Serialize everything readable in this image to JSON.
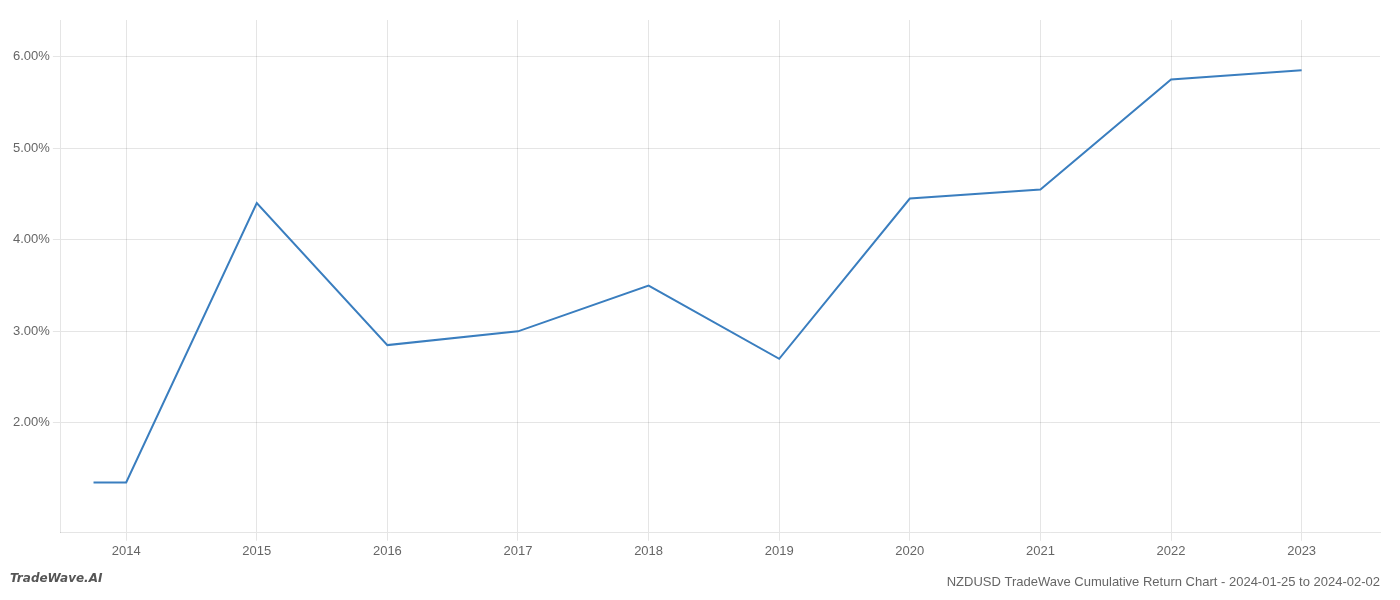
{
  "chart_data": {
    "type": "line",
    "title": "NZDUSD TradeWave Cumulative Return Chart - 2024-01-25 to 2024-02-02",
    "annotations": [
      "TradeWave.AI"
    ],
    "x": [
      2013.75,
      2014,
      2015,
      2016,
      2017,
      2018,
      2019,
      2020,
      2021,
      2022,
      2023
    ],
    "values": [
      0.0135,
      0.0135,
      0.044,
      0.0285,
      0.03,
      0.035,
      0.027,
      0.0445,
      0.0455,
      0.0575,
      0.0585
    ],
    "color": "#3a7ebf",
    "xlim": [
      2013.5,
      2023.6
    ],
    "ylim": [
      0.008,
      0.064
    ],
    "xticks": [
      2014,
      2015,
      2016,
      2017,
      2018,
      2019,
      2020,
      2021,
      2022,
      2023
    ],
    "yticks": [
      {
        "value": 0.02,
        "label": "2.00%"
      },
      {
        "value": 0.03,
        "label": "3.00%"
      },
      {
        "value": 0.04,
        "label": "4.00%"
      },
      {
        "value": 0.05,
        "label": "5.00%"
      },
      {
        "value": 0.06,
        "label": "6.00%"
      }
    ],
    "grid": true
  }
}
